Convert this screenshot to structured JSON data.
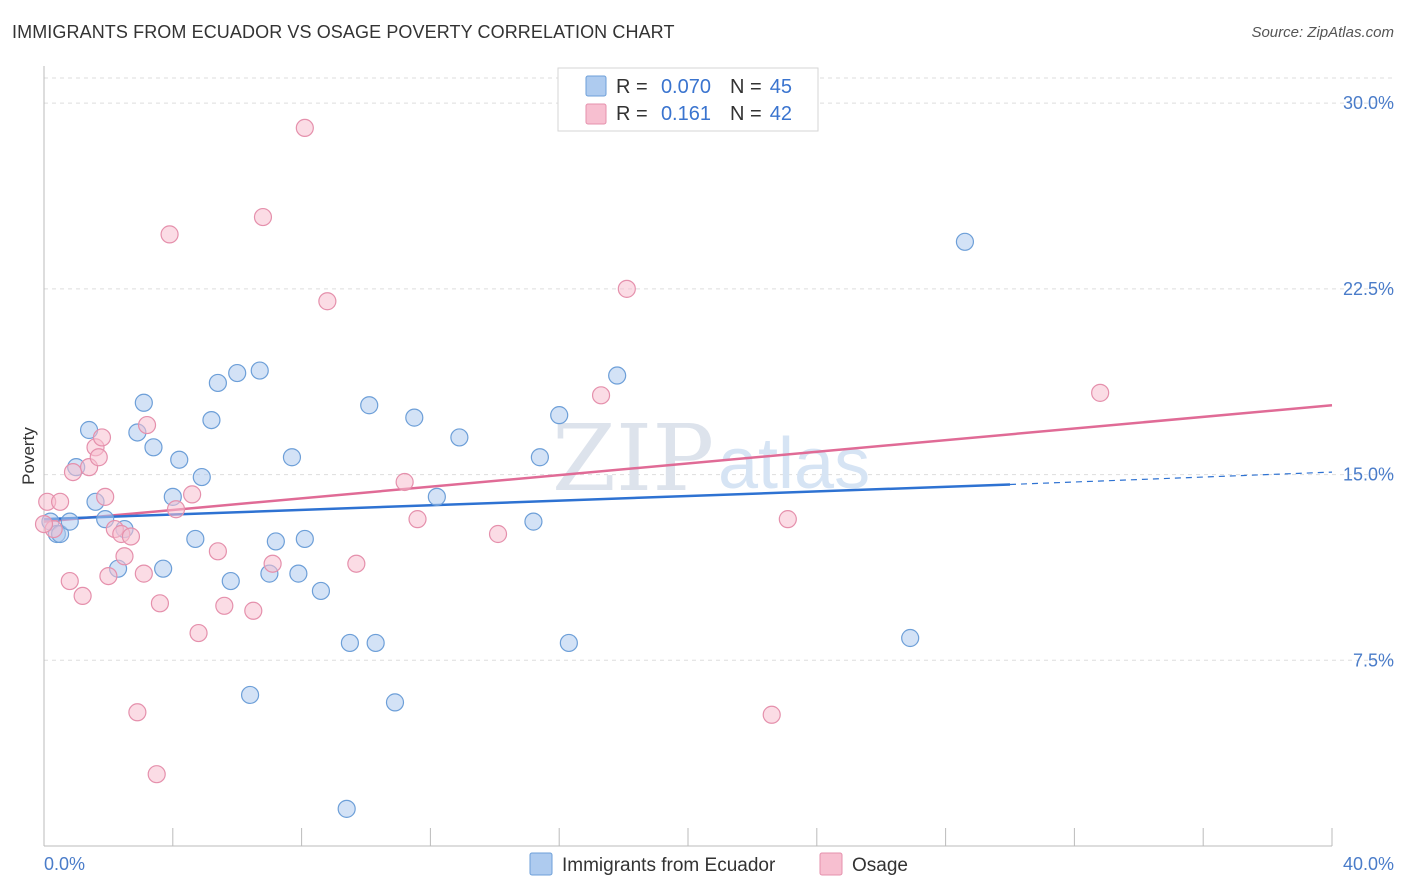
{
  "header": {
    "title": "IMMIGRANTS FROM ECUADOR VS OSAGE POVERTY CORRELATION CHART",
    "source": "Source: ZipAtlas.com"
  },
  "watermark": {
    "zip": "ZIP",
    "atlas": "atlas"
  },
  "legend": {
    "r_label": "R =",
    "n_label": "N =",
    "rows": [
      {
        "r": "0.070",
        "n": "45"
      },
      {
        "r": "0.161",
        "n": "42"
      }
    ]
  },
  "colors": {
    "ecuador_fill": "#aecbef",
    "ecuador_stroke": "#6d9fd8",
    "ecuador_line": "#2e72d2",
    "osage_fill": "#f7bfd0",
    "osage_stroke": "#e590ac",
    "osage_line": "#e06b96",
    "tick_text": "#4a7cc9",
    "grid": "#dddddd"
  },
  "chart_data": {
    "type": "scatter",
    "title": "IMMIGRANTS FROM ECUADOR VS OSAGE POVERTY CORRELATION CHART",
    "xlabel": "",
    "ylabel": "Poverty",
    "xlim": [
      0,
      40
    ],
    "ylim": [
      0,
      31.5
    ],
    "x_tick_labels": [
      "0.0%",
      "40.0%"
    ],
    "y_ticks": [
      7.5,
      15.0,
      22.5,
      30.0
    ],
    "y_tick_labels": [
      "7.5%",
      "15.0%",
      "22.5%",
      "30.0%"
    ],
    "grid": true,
    "legend_position": "top-center",
    "series": [
      {
        "name": "Immigrants from Ecuador",
        "color": "#aecbef",
        "trend": {
          "x": [
            0,
            30
          ],
          "y": [
            13.2,
            14.6
          ],
          "dashed_to": [
            40,
            15.1
          ]
        },
        "points": [
          [
            0.2,
            13.1
          ],
          [
            0.4,
            12.6
          ],
          [
            0.5,
            12.6
          ],
          [
            0.8,
            13.1
          ],
          [
            1.4,
            16.8
          ],
          [
            1.6,
            13.9
          ],
          [
            1.0,
            15.3
          ],
          [
            1.9,
            13.2
          ],
          [
            2.3,
            11.2
          ],
          [
            2.5,
            12.8
          ],
          [
            2.9,
            16.7
          ],
          [
            3.1,
            17.9
          ],
          [
            3.4,
            16.1
          ],
          [
            3.7,
            11.2
          ],
          [
            4.0,
            14.1
          ],
          [
            4.2,
            15.6
          ],
          [
            4.7,
            12.4
          ],
          [
            4.9,
            14.9
          ],
          [
            5.2,
            17.2
          ],
          [
            5.4,
            18.7
          ],
          [
            5.8,
            10.7
          ],
          [
            6.0,
            19.1
          ],
          [
            6.4,
            6.1
          ],
          [
            6.7,
            19.2
          ],
          [
            7.0,
            11.0
          ],
          [
            7.2,
            12.3
          ],
          [
            7.7,
            15.7
          ],
          [
            7.9,
            11.0
          ],
          [
            8.1,
            12.4
          ],
          [
            8.6,
            10.3
          ],
          [
            9.4,
            1.5
          ],
          [
            9.5,
            8.2
          ],
          [
            10.1,
            17.8
          ],
          [
            10.3,
            8.2
          ],
          [
            10.9,
            5.8
          ],
          [
            11.5,
            17.3
          ],
          [
            12.2,
            14.1
          ],
          [
            12.9,
            16.5
          ],
          [
            15.2,
            13.1
          ],
          [
            15.4,
            15.7
          ],
          [
            16.0,
            17.4
          ],
          [
            16.3,
            8.2
          ],
          [
            17.8,
            19.0
          ],
          [
            26.9,
            8.4
          ],
          [
            28.6,
            24.4
          ]
        ]
      },
      {
        "name": "Osage",
        "color": "#f7bfd0",
        "trend": {
          "x": [
            0,
            40
          ],
          "y": [
            13.1,
            17.8
          ]
        },
        "points": [
          [
            0.1,
            13.9
          ],
          [
            0.3,
            12.8
          ],
          [
            0.5,
            13.9
          ],
          [
            0.8,
            10.7
          ],
          [
            0.9,
            15.1
          ],
          [
            1.2,
            10.1
          ],
          [
            1.4,
            15.3
          ],
          [
            1.6,
            16.1
          ],
          [
            1.7,
            15.7
          ],
          [
            1.8,
            16.5
          ],
          [
            1.9,
            14.1
          ],
          [
            2.0,
            10.9
          ],
          [
            2.2,
            12.8
          ],
          [
            2.4,
            12.6
          ],
          [
            2.5,
            11.7
          ],
          [
            2.7,
            12.5
          ],
          [
            2.9,
            5.4
          ],
          [
            3.1,
            11.0
          ],
          [
            3.2,
            17.0
          ],
          [
            3.5,
            2.9
          ],
          [
            3.6,
            9.8
          ],
          [
            3.9,
            24.7
          ],
          [
            4.1,
            13.6
          ],
          [
            4.6,
            14.2
          ],
          [
            4.8,
            8.6
          ],
          [
            5.4,
            11.9
          ],
          [
            5.6,
            9.7
          ],
          [
            6.5,
            9.5
          ],
          [
            6.8,
            25.4
          ],
          [
            7.1,
            11.4
          ],
          [
            8.1,
            29.0
          ],
          [
            8.8,
            22.0
          ],
          [
            9.7,
            11.4
          ],
          [
            11.2,
            14.7
          ],
          [
            11.6,
            13.2
          ],
          [
            14.1,
            12.6
          ],
          [
            17.3,
            18.2
          ],
          [
            18.1,
            22.5
          ],
          [
            22.6,
            5.3
          ],
          [
            23.1,
            13.2
          ],
          [
            32.8,
            18.3
          ],
          [
            0.0,
            13.0
          ]
        ]
      }
    ]
  },
  "bottom_legend": [
    {
      "label": "Immigrants from Ecuador"
    },
    {
      "label": "Osage"
    }
  ]
}
